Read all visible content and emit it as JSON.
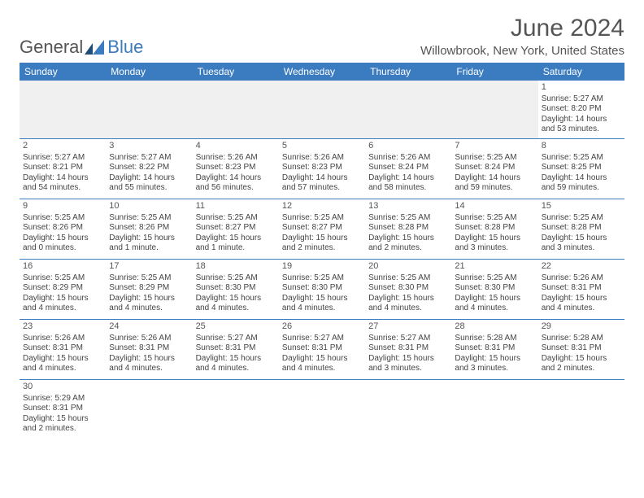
{
  "logo": {
    "text1": "General",
    "text2": "Blue"
  },
  "title": "June 2024",
  "location": "Willowbrook, New York, United States",
  "colors": {
    "accent": "#3b7bbf",
    "text": "#555555",
    "bg": "#ffffff"
  },
  "day_headers": [
    "Sunday",
    "Monday",
    "Tuesday",
    "Wednesday",
    "Thursday",
    "Friday",
    "Saturday"
  ],
  "weeks": [
    [
      null,
      null,
      null,
      null,
      null,
      null,
      {
        "n": "1",
        "sr": "Sunrise: 5:27 AM",
        "ss": "Sunset: 8:20 PM",
        "dl": "Daylight: 14 hours and 53 minutes."
      }
    ],
    [
      {
        "n": "2",
        "sr": "Sunrise: 5:27 AM",
        "ss": "Sunset: 8:21 PM",
        "dl": "Daylight: 14 hours and 54 minutes."
      },
      {
        "n": "3",
        "sr": "Sunrise: 5:27 AM",
        "ss": "Sunset: 8:22 PM",
        "dl": "Daylight: 14 hours and 55 minutes."
      },
      {
        "n": "4",
        "sr": "Sunrise: 5:26 AM",
        "ss": "Sunset: 8:23 PM",
        "dl": "Daylight: 14 hours and 56 minutes."
      },
      {
        "n": "5",
        "sr": "Sunrise: 5:26 AM",
        "ss": "Sunset: 8:23 PM",
        "dl": "Daylight: 14 hours and 57 minutes."
      },
      {
        "n": "6",
        "sr": "Sunrise: 5:26 AM",
        "ss": "Sunset: 8:24 PM",
        "dl": "Daylight: 14 hours and 58 minutes."
      },
      {
        "n": "7",
        "sr": "Sunrise: 5:25 AM",
        "ss": "Sunset: 8:24 PM",
        "dl": "Daylight: 14 hours and 59 minutes."
      },
      {
        "n": "8",
        "sr": "Sunrise: 5:25 AM",
        "ss": "Sunset: 8:25 PM",
        "dl": "Daylight: 14 hours and 59 minutes."
      }
    ],
    [
      {
        "n": "9",
        "sr": "Sunrise: 5:25 AM",
        "ss": "Sunset: 8:26 PM",
        "dl": "Daylight: 15 hours and 0 minutes."
      },
      {
        "n": "10",
        "sr": "Sunrise: 5:25 AM",
        "ss": "Sunset: 8:26 PM",
        "dl": "Daylight: 15 hours and 1 minute."
      },
      {
        "n": "11",
        "sr": "Sunrise: 5:25 AM",
        "ss": "Sunset: 8:27 PM",
        "dl": "Daylight: 15 hours and 1 minute."
      },
      {
        "n": "12",
        "sr": "Sunrise: 5:25 AM",
        "ss": "Sunset: 8:27 PM",
        "dl": "Daylight: 15 hours and 2 minutes."
      },
      {
        "n": "13",
        "sr": "Sunrise: 5:25 AM",
        "ss": "Sunset: 8:28 PM",
        "dl": "Daylight: 15 hours and 2 minutes."
      },
      {
        "n": "14",
        "sr": "Sunrise: 5:25 AM",
        "ss": "Sunset: 8:28 PM",
        "dl": "Daylight: 15 hours and 3 minutes."
      },
      {
        "n": "15",
        "sr": "Sunrise: 5:25 AM",
        "ss": "Sunset: 8:28 PM",
        "dl": "Daylight: 15 hours and 3 minutes."
      }
    ],
    [
      {
        "n": "16",
        "sr": "Sunrise: 5:25 AM",
        "ss": "Sunset: 8:29 PM",
        "dl": "Daylight: 15 hours and 4 minutes."
      },
      {
        "n": "17",
        "sr": "Sunrise: 5:25 AM",
        "ss": "Sunset: 8:29 PM",
        "dl": "Daylight: 15 hours and 4 minutes."
      },
      {
        "n": "18",
        "sr": "Sunrise: 5:25 AM",
        "ss": "Sunset: 8:30 PM",
        "dl": "Daylight: 15 hours and 4 minutes."
      },
      {
        "n": "19",
        "sr": "Sunrise: 5:25 AM",
        "ss": "Sunset: 8:30 PM",
        "dl": "Daylight: 15 hours and 4 minutes."
      },
      {
        "n": "20",
        "sr": "Sunrise: 5:25 AM",
        "ss": "Sunset: 8:30 PM",
        "dl": "Daylight: 15 hours and 4 minutes."
      },
      {
        "n": "21",
        "sr": "Sunrise: 5:25 AM",
        "ss": "Sunset: 8:30 PM",
        "dl": "Daylight: 15 hours and 4 minutes."
      },
      {
        "n": "22",
        "sr": "Sunrise: 5:26 AM",
        "ss": "Sunset: 8:31 PM",
        "dl": "Daylight: 15 hours and 4 minutes."
      }
    ],
    [
      {
        "n": "23",
        "sr": "Sunrise: 5:26 AM",
        "ss": "Sunset: 8:31 PM",
        "dl": "Daylight: 15 hours and 4 minutes."
      },
      {
        "n": "24",
        "sr": "Sunrise: 5:26 AM",
        "ss": "Sunset: 8:31 PM",
        "dl": "Daylight: 15 hours and 4 minutes."
      },
      {
        "n": "25",
        "sr": "Sunrise: 5:27 AM",
        "ss": "Sunset: 8:31 PM",
        "dl": "Daylight: 15 hours and 4 minutes."
      },
      {
        "n": "26",
        "sr": "Sunrise: 5:27 AM",
        "ss": "Sunset: 8:31 PM",
        "dl": "Daylight: 15 hours and 4 minutes."
      },
      {
        "n": "27",
        "sr": "Sunrise: 5:27 AM",
        "ss": "Sunset: 8:31 PM",
        "dl": "Daylight: 15 hours and 3 minutes."
      },
      {
        "n": "28",
        "sr": "Sunrise: 5:28 AM",
        "ss": "Sunset: 8:31 PM",
        "dl": "Daylight: 15 hours and 3 minutes."
      },
      {
        "n": "29",
        "sr": "Sunrise: 5:28 AM",
        "ss": "Sunset: 8:31 PM",
        "dl": "Daylight: 15 hours and 2 minutes."
      }
    ],
    [
      {
        "n": "30",
        "sr": "Sunrise: 5:29 AM",
        "ss": "Sunset: 8:31 PM",
        "dl": "Daylight: 15 hours and 2 minutes."
      },
      null,
      null,
      null,
      null,
      null,
      null
    ]
  ]
}
